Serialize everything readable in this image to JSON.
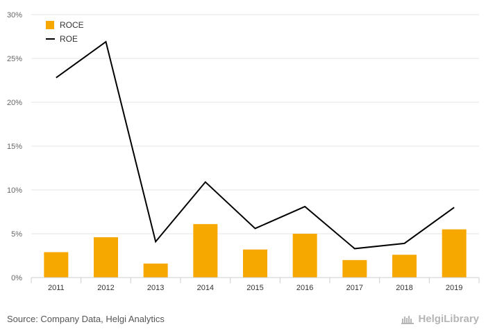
{
  "chart_data": {
    "type": "bar",
    "categories": [
      "2011",
      "2012",
      "2013",
      "2014",
      "2015",
      "2016",
      "2017",
      "2018",
      "2019"
    ],
    "series": [
      {
        "name": "ROCE",
        "type": "bar",
        "color": "#f7a800",
        "values": [
          2.9,
          4.6,
          1.6,
          6.1,
          3.2,
          5.0,
          2.0,
          2.6,
          5.5
        ]
      },
      {
        "name": "ROE",
        "type": "line",
        "color": "#000000",
        "values": [
          22.8,
          26.9,
          4.1,
          10.9,
          5.6,
          8.1,
          3.3,
          3.9,
          8.0
        ]
      }
    ],
    "ylim": [
      0,
      30
    ],
    "yticks": [
      "0%",
      "5%",
      "10%",
      "15%",
      "20%",
      "25%",
      "30%"
    ],
    "ytick_values": [
      0,
      5,
      10,
      15,
      20,
      25,
      30
    ],
    "grid": true,
    "legend": "top-left"
  },
  "footer": {
    "source": "Source: Company Data, Helgi Analytics",
    "brand": "HelgiLibrary"
  }
}
